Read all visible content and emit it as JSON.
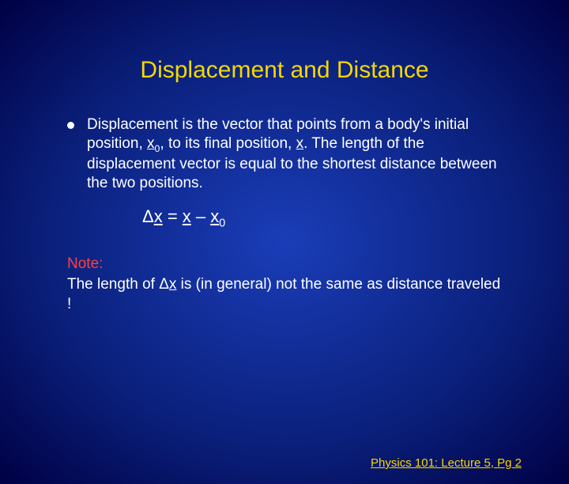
{
  "title": "Displacement and Distance",
  "bullet": {
    "pre": "Displacement is the vector that points from a body's initial position, ",
    "x0": "x",
    "x0sub": "0",
    "mid1": ", to its final position, ",
    "x": "x",
    "post": ". The length of the displacement vector is equal to the shortest distance between the two positions."
  },
  "formula": {
    "delta": "Δ",
    "dx": "x",
    "eq": " = ",
    "x": "x",
    "minus": " – ",
    "x0": "x",
    "x0sub": "0"
  },
  "note": {
    "label": "Note:",
    "pre": "The length of ",
    "delta": "Δ",
    "dx": "x",
    "post": " is (in general) not the same as distance traveled !"
  },
  "footer": "Physics 101: Lecture 5, Pg 2"
}
